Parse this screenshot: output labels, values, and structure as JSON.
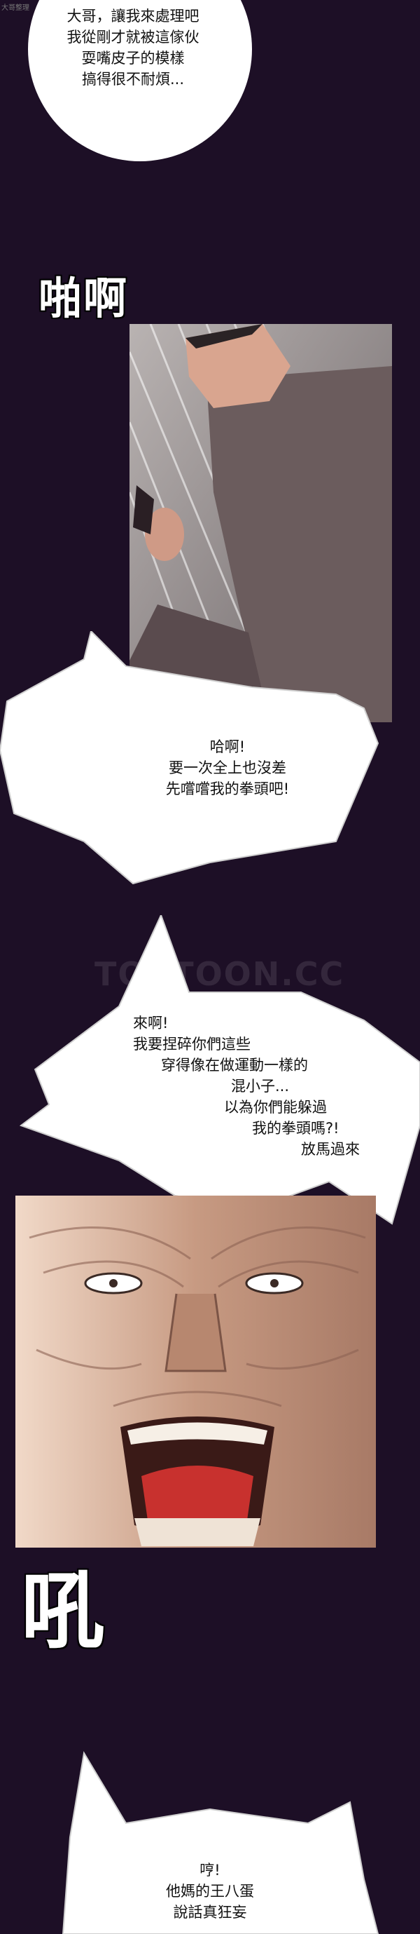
{
  "watermark_top_left": "大哥整理",
  "watermark_center": "TOPTOON.CC",
  "bubbles": {
    "b1": [
      "大哥，讓我來處理吧",
      "我從剛才就被這傢伙",
      "耍嘴皮子的模樣",
      "搞得很不耐煩..."
    ],
    "b2": [
      "哈啊!",
      "要一次全上也沒差",
      "先嚐嚐我的拳頭吧!"
    ],
    "b3": [
      "來啊!",
      "我要捏碎你們這些",
      "穿得像在做運動一樣的",
      "混小子...",
      "以為你們能躲過",
      "我的拳頭嗎?!",
      "放馬過來"
    ],
    "b4": [
      "哼!",
      "他媽的王八蛋",
      "說話真狂妄"
    ]
  },
  "sfx": {
    "slap": "啪啊",
    "roar": "吼"
  },
  "colors": {
    "background": "#1d0f26",
    "bubble": "#ffffff",
    "mouth": "#c8312e"
  }
}
